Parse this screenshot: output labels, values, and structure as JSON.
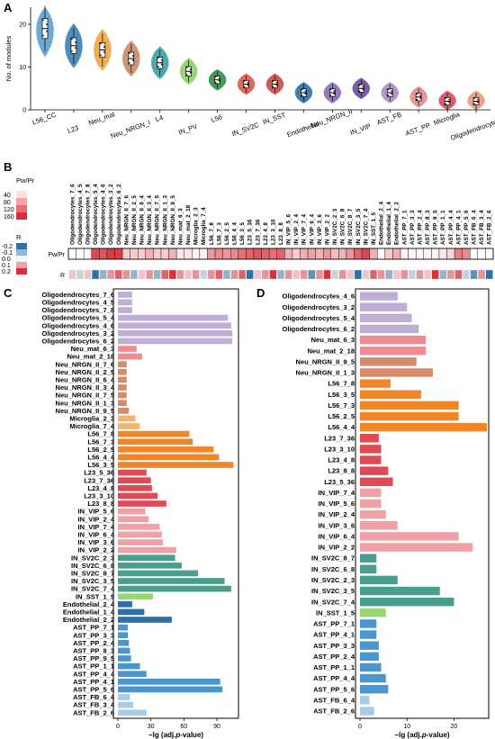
{
  "panel_letters": {
    "a": "A",
    "b": "B",
    "c": "C",
    "d": "D"
  },
  "chart_data": [
    {
      "panel": "A",
      "type": "violin",
      "ylabel": "No. of modules",
      "ylim": [
        0,
        24
      ],
      "yticks": [
        0,
        10,
        20
      ],
      "categories": [
        "L56_CC",
        "L23",
        "Neu_mat",
        "Neu_NRGN_I",
        "L4",
        "IN_PV",
        "L56",
        "IN_SV2C",
        "IN_SST",
        "Endothelial",
        "Neu_NRGN_II",
        "IN_VIP",
        "AST_FB",
        "AST_PP",
        "Microglia",
        "Oligodendrocytes"
      ],
      "medians": [
        19,
        15,
        14,
        12,
        11,
        9,
        7,
        6,
        6,
        4,
        4,
        5,
        4,
        3,
        2,
        2
      ],
      "colors": [
        "#5aa1cf",
        "#3d7fb3",
        "#f0a64a",
        "#c98a6b",
        "#3d9fa2",
        "#8fcf6a",
        "#2f8f3f",
        "#d9584a",
        "#c94a44",
        "#2e6fa6",
        "#8a6cb5",
        "#6b4c9a",
        "#a88dc4",
        "#e88a8a",
        "#d94a5a",
        "#e89a7a"
      ]
    },
    {
      "panel": "B",
      "type": "heatmap",
      "legend_title": "Pw/Pr",
      "legend_ticks": [
        "40",
        "80",
        "120",
        "160"
      ],
      "legend2_title": "R",
      "legend2_ticks": [
        "-0.2",
        "-0.1",
        "0.0",
        "0.1",
        "0.2"
      ],
      "row_labels": [
        "Pw/Pr",
        "R"
      ],
      "columns": [
        "Oligodendrocytes_7_6",
        "Oligodendrocytes_4_5",
        "Oligodendrocytes_7_8",
        "Oligodendrocytes_5_4",
        "Oligodendrocytes_4_6",
        "Oligodendrocytes_3_2",
        "Oligodendrocytes_6_2",
        "Neu_NRGN_II_7_6",
        "Neu_NRGN_II_2_5",
        "Neu_NRGN_II_6_4",
        "Neu_NRGN_II_3_4",
        "Neu_NRGN_II_7_5",
        "Neu_NRGN_II_1_3",
        "Neu_NRGN_II_9_5",
        "Neu_mat_6_3",
        "Neu_mat_2_18",
        "Microglia_2_3",
        "Microglia_7_4",
        "L56_7_8",
        "L56_7_3",
        "L56_2_5",
        "L56_4_4",
        "L56_3_5",
        "L23_5_36",
        "L23_7_36",
        "L23_4_8",
        "L23_3_10",
        "L23_8_8",
        "IN_VIP_5_6",
        "IN_VIP_2_4",
        "IN_VIP_7_4",
        "IN_VIP_6_4",
        "IN_VIP_3_6",
        "IN_VIP_2_2",
        "IN_SV2C_2_3",
        "IN_SV2C_6_8",
        "IN_SV2C_8_7",
        "IN_SV2C_3_5",
        "IN_SV2C_7_4",
        "IN_SST_1_5",
        "Endothelial_2_4",
        "Endothelial_1_4",
        "Endothelial_2_2",
        "AST_PP_7_1",
        "AST_PP_3_3",
        "AST_PP_2_4",
        "AST_PP_8_3",
        "AST_PP_9_5",
        "AST_PP_1_1",
        "AST_PP_4_4",
        "AST_PP_4_1",
        "AST_PP_5_6",
        "AST_FB_6_4",
        "AST_FB_3_4",
        "AST_FB_2_6"
      ],
      "row_top": [
        0,
        0,
        0,
        140,
        130,
        150,
        150,
        40,
        40,
        40,
        60,
        40,
        40,
        60,
        20,
        20,
        10,
        10,
        80,
        90,
        80,
        90,
        110,
        120,
        130,
        120,
        110,
        120,
        60,
        40,
        60,
        70,
        60,
        80,
        50,
        60,
        80,
        120,
        140,
        60,
        0,
        40,
        60,
        10,
        10,
        10,
        10,
        10,
        20,
        30,
        100,
        90,
        0,
        0,
        0
      ],
      "row_bottom": [
        0.05,
        -0.05,
        0.05,
        -0.2,
        -0.1,
        0.1,
        0.15,
        0.1,
        -0.1,
        0.05,
        0.1,
        -0.1,
        0.15,
        0.2,
        0.1,
        0.05,
        0.1,
        -0.05,
        0.1,
        0.15,
        -0.1,
        0.1,
        0.15,
        -0.2,
        0.05,
        0.1,
        0.2,
        -0.1,
        0.1,
        0.05,
        0.1,
        -0.15,
        0.1,
        0.2,
        -0.05,
        0.1,
        0.05,
        -0.2,
        0.05,
        0.15,
        0.1,
        -0.1,
        0.05,
        0.1,
        -0.05,
        0.1,
        0.05,
        0.2,
        -0.1,
        0.1,
        0.15,
        -0.05,
        -0.15,
        0.1,
        -0.2
      ]
    },
    {
      "panel": "C",
      "type": "bar",
      "orientation": "horizontal",
      "xlabel_prefix": "−lg (adj.",
      "xlabel_italic": "p",
      "xlabel_suffix": "-value)",
      "xlim": [
        0,
        108
      ],
      "xticks": [
        0,
        30,
        60,
        90
      ],
      "categories": [
        "Oligodendrocytes_7_6",
        "Oligodendrocytes_4_5",
        "Oligodendrocytes_7_8",
        "Oligodendrocytes_5_4",
        "Oligodendrocytes_4_6",
        "Oligodendrocytes_3_2",
        "Oligodendrocytes_6_2",
        "Neu_mat_6_3",
        "Neu_mat_2_18",
        "Neu_NRGN_II_7_6",
        "Neu_NRGN_II_2_5",
        "Neu_NRGN_II_6_4",
        "Neu_NRGN_II_3_4",
        "Neu_NRGN_II_7_5",
        "Neu_NRGN_II_1_3",
        "Neu_NRGN_II_9_5",
        "Microglia_2_3",
        "Microglia_7_4",
        "L56_7_8",
        "L56_7_3",
        "L56_2_5",
        "L56_4_4",
        "L56_3_5",
        "L23_5_36",
        "L23_7_36",
        "L23_4_8",
        "L23_3_10",
        "L23_8_8",
        "IN_VIP_5_6",
        "IN_VIP_2_4",
        "IN_VIP_7_4",
        "IN_VIP_6_4",
        "IN_VIP_3_6",
        "IN_VIP_2_2",
        "IN_SV2C_2_3",
        "IN_SV2C_6_8",
        "IN_SV2C_8_7",
        "IN_SV2C_3_5",
        "IN_SV2C_7_4",
        "IN_SST_1_5",
        "Endothelial_2_4",
        "Endothelial_1_4",
        "Endothelial_2_2",
        "AST_PP_7_1",
        "AST_PP_3_3",
        "AST_PP_2_4",
        "AST_PP_8_3",
        "AST_PP_9_5",
        "AST_PP_1_1",
        "AST_PP_4_4",
        "AST_PP_4_1",
        "AST_PP_5_6",
        "AST_FB_6_4",
        "AST_FB_3_4",
        "AST_FB_2_6"
      ],
      "values": [
        13,
        13,
        13,
        100,
        103,
        104,
        104,
        17,
        22,
        8,
        8,
        8,
        8,
        8,
        8,
        10,
        16,
        20,
        65,
        68,
        87,
        92,
        105,
        26,
        30,
        31,
        36,
        44,
        25,
        28,
        38,
        40,
        41,
        53,
        52,
        58,
        73,
        97,
        103,
        32,
        13,
        24,
        49,
        9,
        9,
        10,
        11,
        12,
        20,
        26,
        93,
        95,
        11,
        14,
        26
      ],
      "colors": [
        "#bfaed6",
        "#bfaed6",
        "#bfaed6",
        "#bfaed6",
        "#bfaed6",
        "#bfaed6",
        "#bfaed6",
        "#f28b90",
        "#f28b90",
        "#d48a6b",
        "#d48a6b",
        "#d48a6b",
        "#d48a6b",
        "#d48a6b",
        "#d48a6b",
        "#d48a6b",
        "#f5b46e",
        "#f5b46e",
        "#f0862a",
        "#f0862a",
        "#f0862a",
        "#f0862a",
        "#f0862a",
        "#df4a55",
        "#df4a55",
        "#df4a55",
        "#df4a55",
        "#df4a55",
        "#f2a0a8",
        "#f2a0a8",
        "#f2a0a8",
        "#f2a0a8",
        "#f2a0a8",
        "#f2a0a8",
        "#4a9e8c",
        "#4a9e8c",
        "#4a9e8c",
        "#4a9e8c",
        "#4a9e8c",
        "#9ad670",
        "#2e6fa6",
        "#2e6fa6",
        "#2e6fa6",
        "#4a96cf",
        "#4a96cf",
        "#4a96cf",
        "#4a96cf",
        "#4a96cf",
        "#4a96cf",
        "#4a96cf",
        "#4a96cf",
        "#4a96cf",
        "#a8cce6",
        "#a8cce6",
        "#a8cce6"
      ]
    },
    {
      "panel": "D",
      "type": "bar",
      "orientation": "horizontal",
      "xlabel_prefix": "−lg (adj.",
      "xlabel_italic": "p",
      "xlabel_suffix": "-value)",
      "xlim": [
        0,
        27
      ],
      "xticks": [
        0,
        10,
        20
      ],
      "categories": [
        "Oligodendrocytes_4_6",
        "Oligodendrocytes_3_2",
        "Oligodendrocytes_5_4",
        "Oligodendrocytes_6_2",
        "Neu_mat_6_3",
        "Neu_mat_2_18",
        "Neu_NRGN_II_9_5",
        "Neu_NRGN_II_1_3",
        "L56_7_8",
        "L56_3_5",
        "L56_7_3",
        "L56_2_5",
        "L56_4_4",
        "L23_7_36",
        "L23_3_10",
        "L23_4_8",
        "L23_8_8",
        "L23_5_36",
        "IN_VIP_7_4",
        "IN_VIP_5_6",
        "IN_VIP_2_4",
        "IN_VIP_3_6",
        "IN_VIP_6_4",
        "IN_VIP_2_2",
        "IN_SV2C_8_7",
        "IN_SV2C_6_8",
        "IN_SV2C_2_3",
        "IN_SV2C_3_5",
        "IN_SV2C_7_4",
        "IN_SST_1_5",
        "AST_PP_7_1",
        "AST_PP_4_1",
        "AST_PP_3_3",
        "AST_PP_2_4",
        "AST_PP_1_1",
        "AST_PP_4_4",
        "AST_PP_5_6",
        "AST_FB_6_4",
        "AST_FB_2_6"
      ],
      "values": [
        8,
        10,
        11,
        12.5,
        14,
        14,
        12,
        15.5,
        6.5,
        13,
        21,
        21,
        27,
        4,
        4.5,
        4.5,
        6,
        7,
        4.5,
        4.5,
        5.5,
        8,
        21,
        24,
        3.5,
        3.5,
        8,
        17,
        20,
        5.5,
        3.5,
        3.5,
        4,
        4,
        4.5,
        5.5,
        6,
        2,
        3
      ],
      "colors": [
        "#bfaed6",
        "#bfaed6",
        "#bfaed6",
        "#bfaed6",
        "#f28b90",
        "#f28b90",
        "#d48a6b",
        "#d48a6b",
        "#f0862a",
        "#f0862a",
        "#f0862a",
        "#f0862a",
        "#f0862a",
        "#df4a55",
        "#df4a55",
        "#df4a55",
        "#df4a55",
        "#df4a55",
        "#f2a0a8",
        "#f2a0a8",
        "#f2a0a8",
        "#f2a0a8",
        "#f2a0a8",
        "#f2a0a8",
        "#4a9e8c",
        "#4a9e8c",
        "#4a9e8c",
        "#4a9e8c",
        "#4a9e8c",
        "#9ad670",
        "#4a96cf",
        "#4a96cf",
        "#4a96cf",
        "#4a96cf",
        "#4a96cf",
        "#4a96cf",
        "#4a96cf",
        "#a8cce6",
        "#a8cce6"
      ]
    }
  ]
}
